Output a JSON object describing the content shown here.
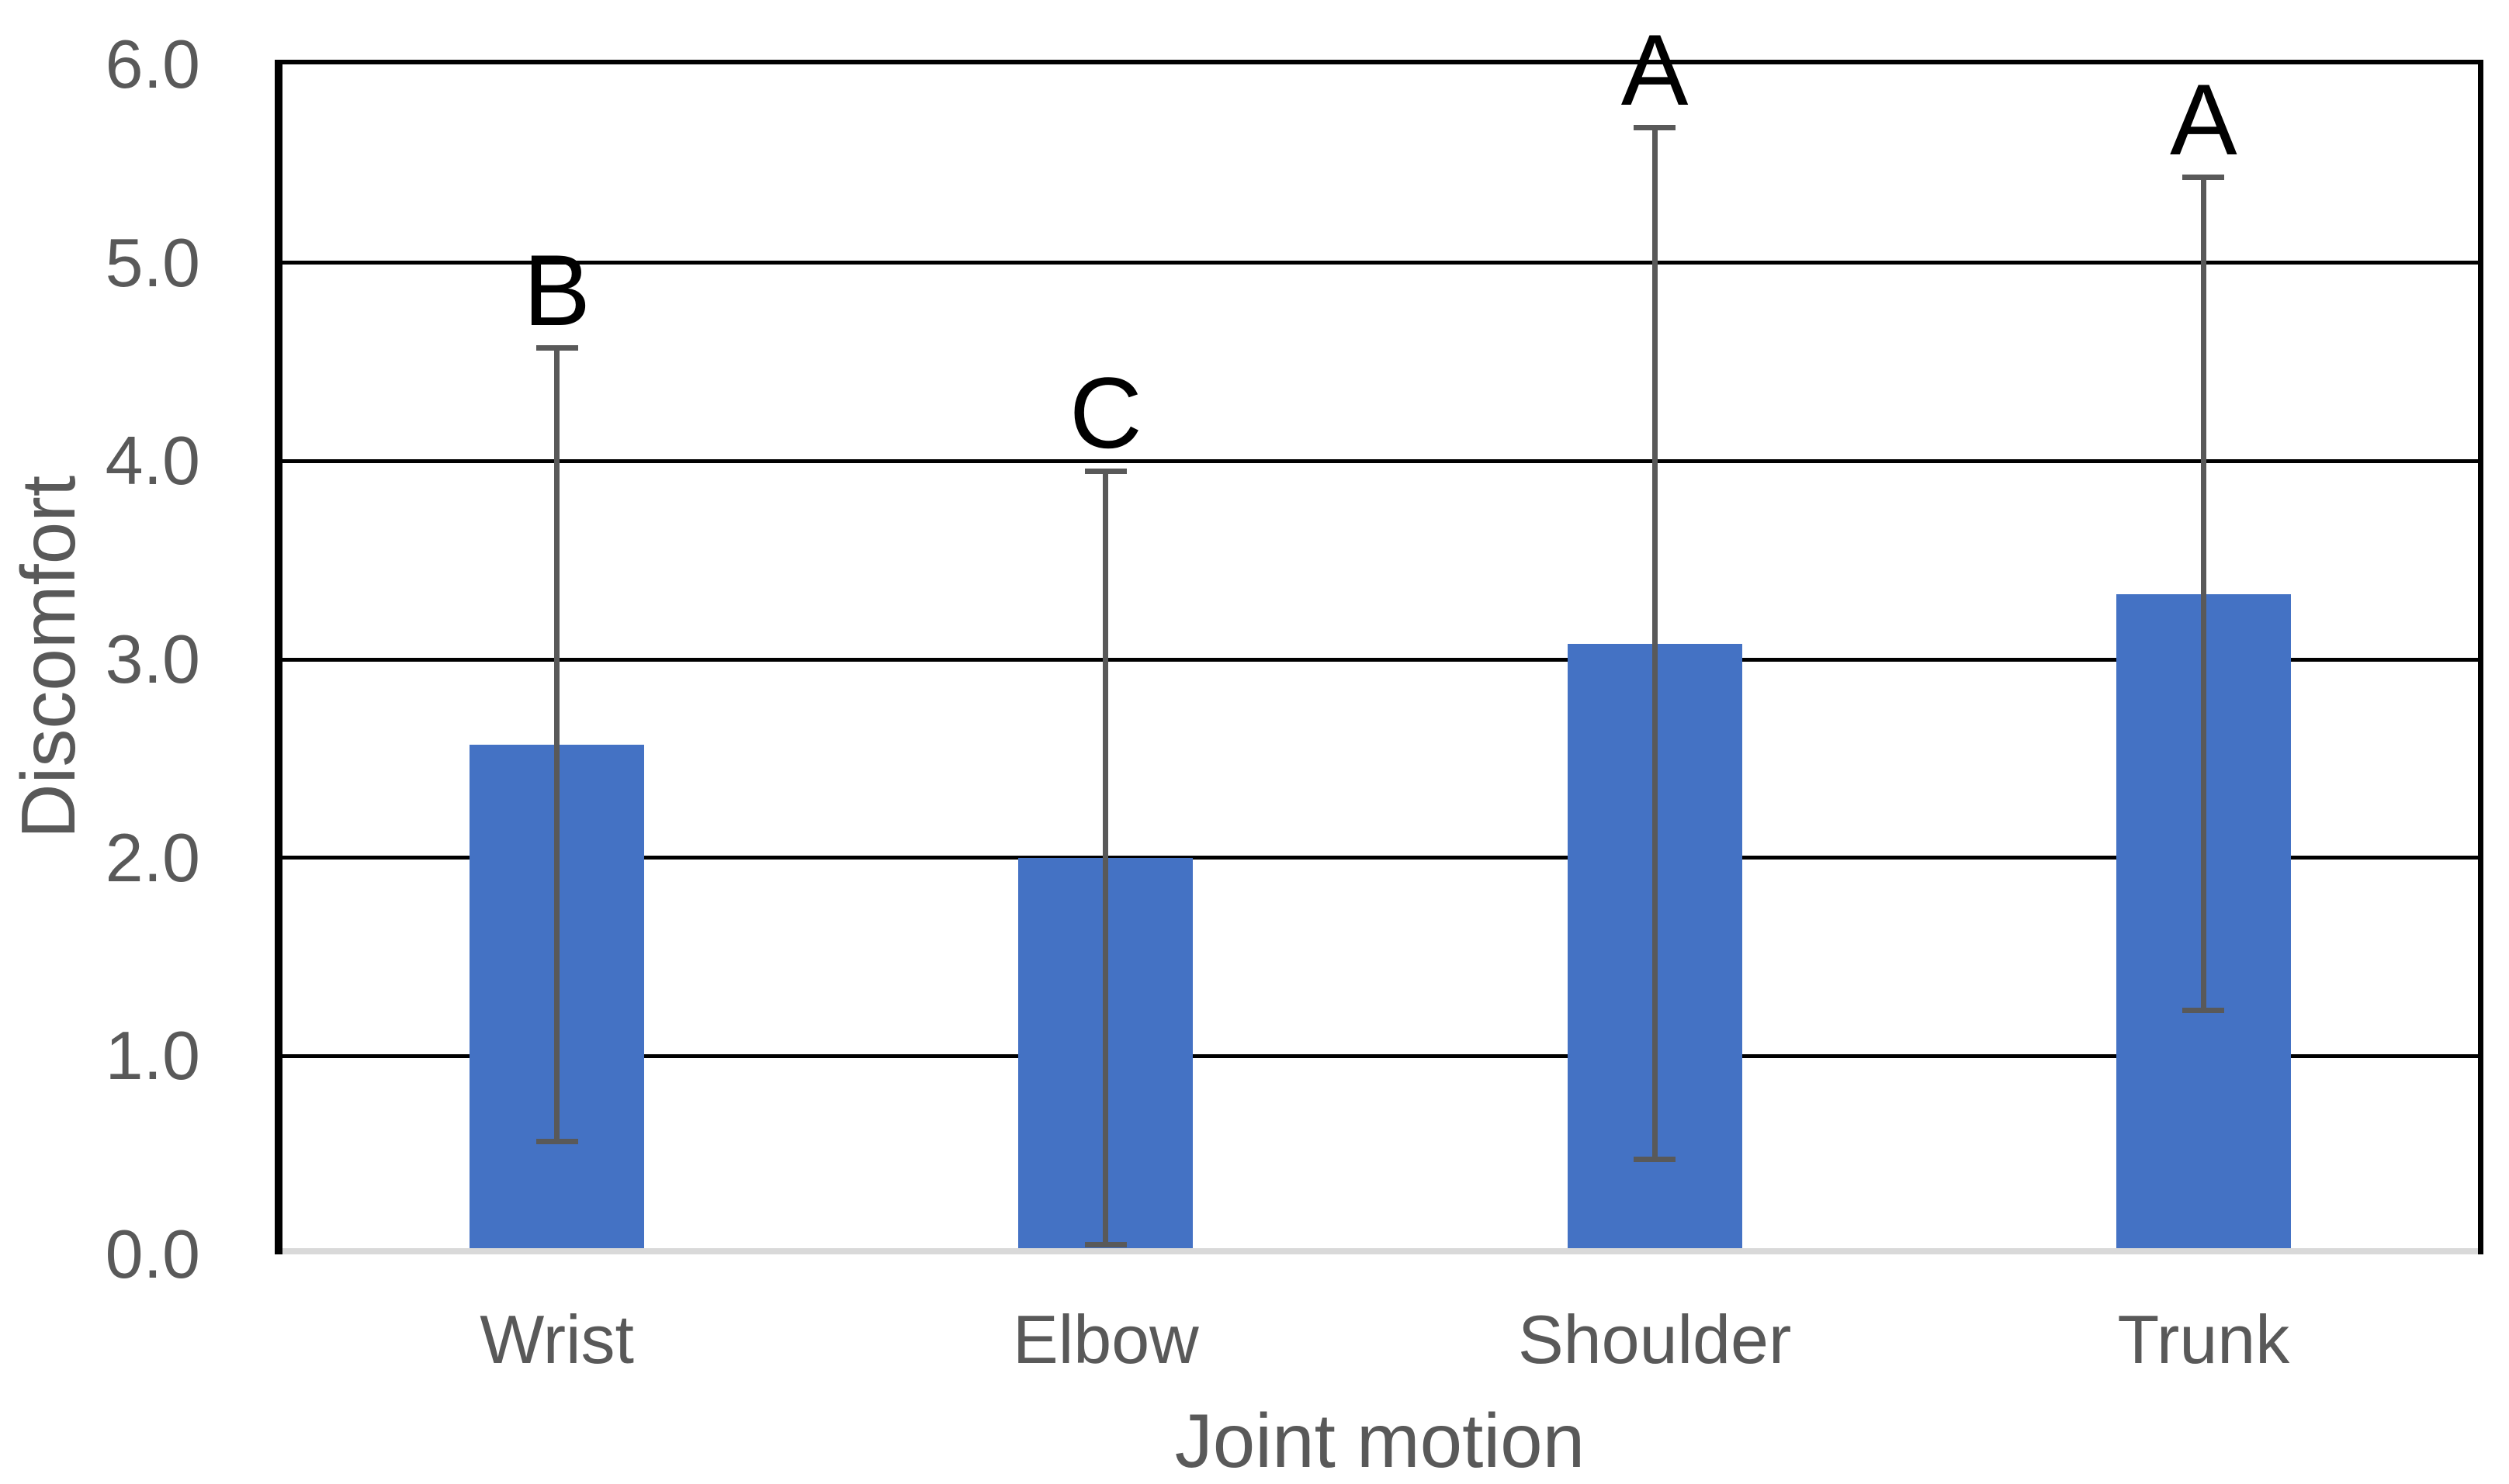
{
  "chart_data": {
    "type": "bar",
    "title": "",
    "xlabel": "Joint motion",
    "ylabel": "Discomfort",
    "categories": [
      "Wrist",
      "Elbow",
      "Shoulder",
      "Trunk"
    ],
    "values": [
      2.57,
      2.0,
      3.08,
      3.33
    ],
    "error_bars": {
      "low": [
        0.57,
        0.05,
        0.48,
        1.23
      ],
      "high": [
        4.57,
        3.95,
        5.68,
        5.43
      ]
    },
    "significance_letters": [
      "B",
      "C",
      "A",
      "A"
    ],
    "ylim": [
      0,
      6
    ],
    "ytick_step": 1.0,
    "ytick_labels": [
      "0.0",
      "1.0",
      "2.0",
      "3.0",
      "4.0",
      "5.0",
      "6.0"
    ],
    "grid": true,
    "legend": false,
    "colors": {
      "bar": "#4472C4",
      "error_bar": "#595959",
      "gridline": "#000000",
      "baseline": "#D9D9D9",
      "axis_line": "#000000",
      "tick_label": "#595959",
      "axis_title": "#595959",
      "letter": "#000000",
      "background": "#FFFFFF"
    }
  }
}
